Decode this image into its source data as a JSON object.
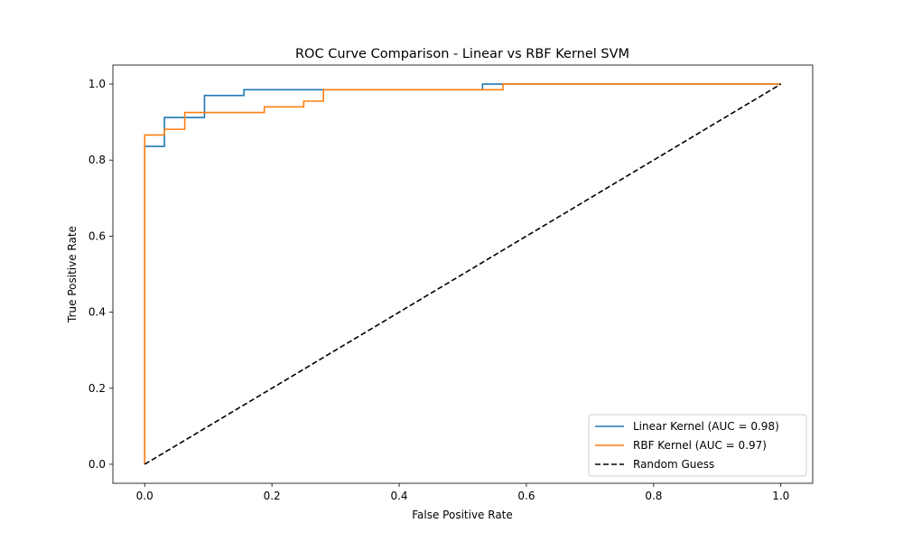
{
  "chart_data": {
    "type": "line",
    "title": "ROC Curve Comparison - Linear vs RBF Kernel SVM",
    "xlabel": "False Positive Rate",
    "ylabel": "True Positive Rate",
    "xlim": [
      -0.05,
      1.05
    ],
    "ylim": [
      -0.05,
      1.05
    ],
    "xticks": [
      0.0,
      0.2,
      0.4,
      0.6,
      0.8,
      1.0
    ],
    "xtick_labels": [
      "0.0",
      "0.2",
      "0.4",
      "0.6",
      "0.8",
      "1.0"
    ],
    "yticks": [
      0.0,
      0.2,
      0.4,
      0.6,
      0.8,
      1.0
    ],
    "ytick_labels": [
      "0.0",
      "0.2",
      "0.4",
      "0.6",
      "0.8",
      "1.0"
    ],
    "grid": false,
    "legend_position": "lower-right",
    "series": [
      {
        "name": "Linear Kernel (AUC = 0.98)",
        "color": "#1f77b4",
        "dash": "solid",
        "x": [
          0.0,
          0.0,
          0.0,
          0.031,
          0.031,
          0.094,
          0.094,
          0.156,
          0.156,
          0.281,
          0.281,
          0.531,
          0.531,
          1.0
        ],
        "y": [
          0.0,
          0.836,
          0.836,
          0.836,
          0.912,
          0.912,
          0.97,
          0.97,
          0.985,
          0.985,
          0.985,
          0.985,
          1.0,
          1.0
        ]
      },
      {
        "name": "RBF Kernel (AUC = 0.97)",
        "color": "#ff7f0e",
        "dash": "solid",
        "x": [
          0.0,
          0.0,
          0.031,
          0.031,
          0.063,
          0.063,
          0.188,
          0.188,
          0.25,
          0.25,
          0.281,
          0.281,
          0.563,
          0.563,
          1.0
        ],
        "y": [
          0.0,
          0.866,
          0.866,
          0.881,
          0.881,
          0.925,
          0.925,
          0.94,
          0.94,
          0.955,
          0.955,
          0.985,
          0.985,
          1.0,
          1.0
        ]
      },
      {
        "name": "Random Guess",
        "color": "#000000",
        "dash": "dashed",
        "x": [
          0.0,
          1.0
        ],
        "y": [
          0.0,
          1.0
        ]
      }
    ]
  }
}
